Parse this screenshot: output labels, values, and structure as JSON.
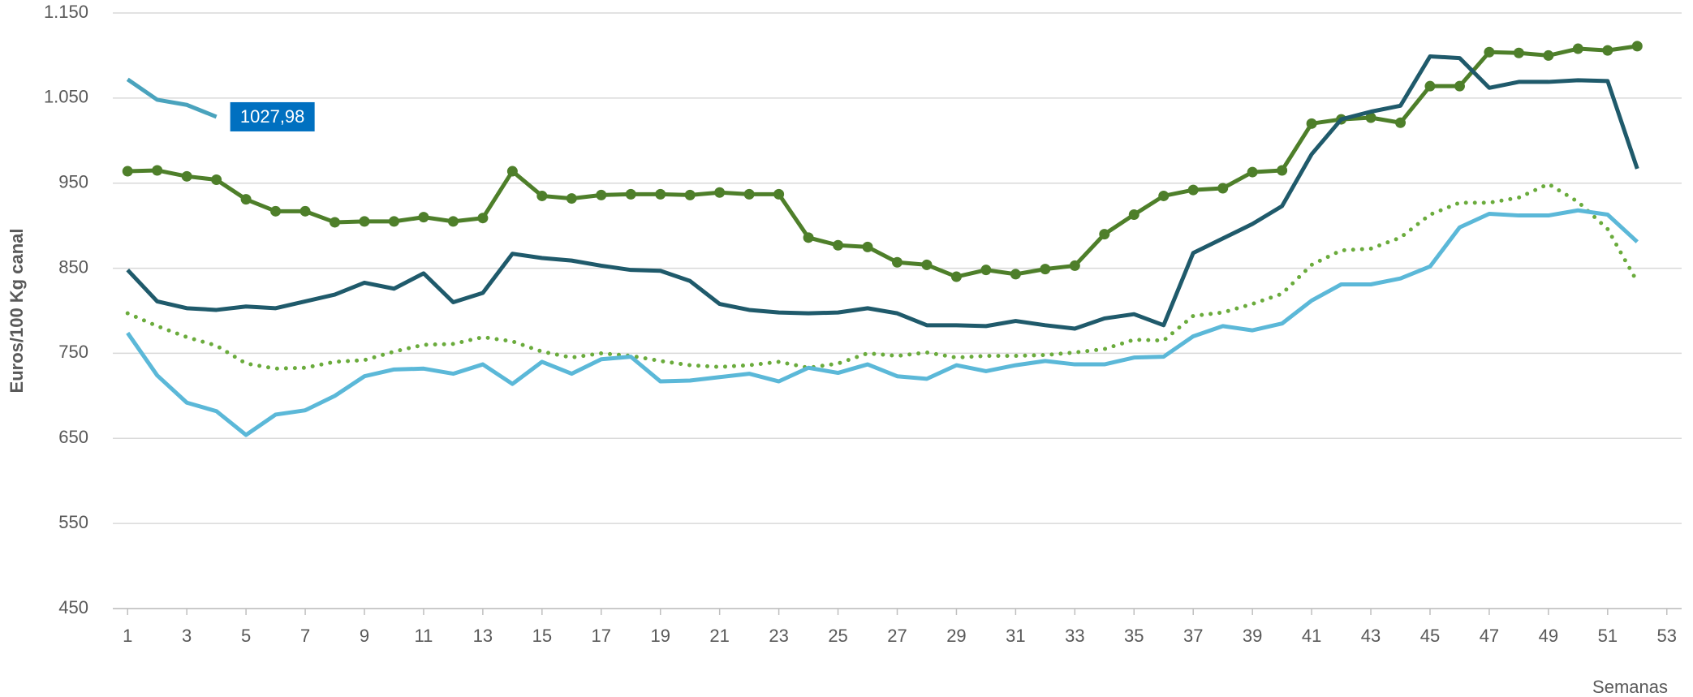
{
  "chart_data": {
    "type": "line",
    "ylabel": "Euros/100 Kg canal",
    "xlabel": "Semanas",
    "x": [
      1,
      2,
      3,
      4,
      5,
      6,
      7,
      8,
      9,
      10,
      11,
      12,
      13,
      14,
      15,
      16,
      17,
      18,
      19,
      20,
      21,
      22,
      23,
      24,
      25,
      26,
      27,
      28,
      29,
      30,
      31,
      32,
      33,
      34,
      35,
      36,
      37,
      38,
      39,
      40,
      41,
      42,
      43,
      44,
      45,
      46,
      47,
      48,
      49,
      50,
      51,
      52
    ],
    "xlim": [
      0.5,
      53.5
    ],
    "xticks": [
      1,
      3,
      5,
      7,
      9,
      11,
      13,
      15,
      17,
      19,
      21,
      23,
      25,
      27,
      29,
      31,
      33,
      35,
      37,
      39,
      41,
      43,
      45,
      47,
      49,
      51,
      53
    ],
    "ylim": [
      450,
      1150
    ],
    "yticks": [
      450,
      550,
      650,
      750,
      850,
      950,
      {
        "value": 1050,
        "label": "1.050"
      },
      {
        "value": 1150,
        "label": "1.150"
      }
    ],
    "grid": true,
    "series": [
      {
        "color": "#4aa3bd",
        "values": [
          1072,
          1048,
          1042,
          1027.98,
          null,
          null,
          null,
          null,
          null,
          null,
          null,
          null,
          null,
          null,
          null,
          null,
          null,
          null,
          null,
          null,
          null,
          null,
          null,
          null,
          null,
          null,
          null,
          null,
          null,
          null,
          null,
          null,
          null,
          null,
          null,
          null,
          null,
          null,
          null,
          null,
          null,
          null,
          null,
          null,
          null,
          null,
          null,
          null,
          null,
          null,
          null,
          null
        ],
        "value_labels": [
          null,
          null,
          null,
          "1027,98",
          null,
          null,
          null,
          null,
          null,
          null,
          null,
          null,
          null,
          null,
          null,
          null,
          null,
          null,
          null,
          null,
          null,
          null,
          null,
          null,
          null,
          null,
          null,
          null,
          null,
          null,
          null,
          null,
          null,
          null,
          null,
          null,
          null,
          null,
          null,
          null,
          null,
          null,
          null,
          null,
          null,
          null,
          null,
          null,
          null,
          null,
          null,
          null
        ]
      },
      {
        "color": "#4e7f2a",
        "marker": true,
        "values": [
          964,
          965,
          958,
          954,
          931,
          917,
          917,
          904,
          905,
          905,
          910,
          905,
          909,
          964,
          935,
          932,
          936,
          937,
          937,
          936,
          939,
          937,
          937,
          886,
          877,
          875,
          857,
          854,
          840,
          848,
          843,
          849,
          853,
          890,
          913,
          935,
          942,
          944,
          963,
          965,
          1020,
          1025,
          1027,
          1021,
          1064,
          1064,
          1104,
          1103,
          1100,
          1108,
          1106,
          1111
        ]
      },
      {
        "color": "#1f5a6b",
        "values": [
          848,
          811,
          803,
          801,
          805,
          803,
          811,
          819,
          833,
          826,
          844,
          810,
          821,
          867,
          862,
          859,
          853,
          848,
          847,
          835,
          808,
          801,
          798,
          797,
          798,
          803,
          797,
          783,
          783,
          782,
          788,
          783,
          779,
          791,
          796,
          783,
          868,
          885,
          902,
          923,
          984,
          1025,
          1034,
          1041,
          1099,
          1097,
          1062,
          1069,
          1069,
          1071,
          1070,
          967
        ]
      },
      {
        "color": "#6aab3c",
        "dash": "dotted",
        "values": [
          797,
          782,
          769,
          759,
          738,
          732,
          733,
          740,
          742,
          752,
          760,
          761,
          769,
          764,
          752,
          745,
          750,
          747,
          741,
          736,
          734,
          736,
          740,
          733,
          738,
          750,
          747,
          751,
          745,
          747,
          747,
          748,
          751,
          755,
          766,
          765,
          794,
          798,
          808,
          820,
          854,
          871,
          873,
          886,
          913,
          927,
          927,
          933,
          949,
          928,
          896,
          834
        ]
      },
      {
        "color": "#5bb8d8",
        "values": [
          774,
          724,
          692,
          682,
          654,
          678,
          683,
          700,
          723,
          731,
          732,
          726,
          737,
          714,
          740,
          726,
          743,
          746,
          717,
          718,
          722,
          726,
          717,
          733,
          727,
          737,
          723,
          720,
          736,
          729,
          736,
          741,
          737,
          737,
          745,
          746,
          770,
          782,
          777,
          785,
          812,
          831,
          831,
          838,
          852,
          898,
          914,
          912,
          912,
          918,
          913,
          881
        ]
      }
    ]
  }
}
